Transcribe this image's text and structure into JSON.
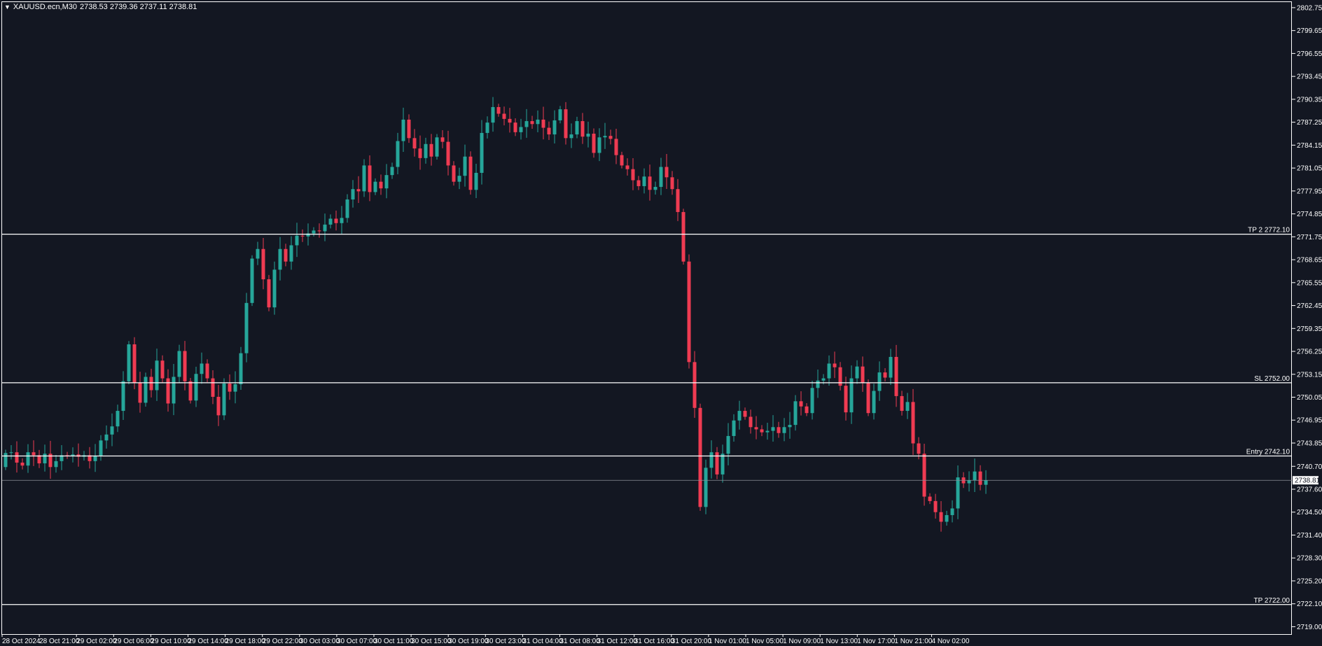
{
  "header": {
    "menu_icon": "triangle-down-icon",
    "symbol": "XAUUSD.ecn,M30",
    "ohlc": "2738.53 2739.36 2737.11 2738.81"
  },
  "colors": {
    "background": "#131722",
    "bull": "#26a69a",
    "bear": "#ef3b52",
    "lines": "#ffffff"
  },
  "chart_data": {
    "type": "candlestick",
    "ylim": [
      2718.0,
      2803.5
    ],
    "y_ticks": [
      "2802.75",
      "2799.65",
      "2796.55",
      "2793.45",
      "2790.35",
      "2787.25",
      "2784.15",
      "2781.05",
      "2777.95",
      "2774.85",
      "2771.75",
      "2768.65",
      "2765.55",
      "2762.45",
      "2759.35",
      "2756.25",
      "2753.15",
      "2750.05",
      "2746.95",
      "2743.85",
      "2740.70",
      "2737.60",
      "2734.50",
      "2731.40",
      "2728.30",
      "2725.20",
      "2722.10",
      "2719.00"
    ],
    "x_labels": [
      "28 Oct 2024",
      "28 Oct 21:00",
      "29 Oct 02:00",
      "29 Oct 06:00",
      "29 Oct 10:00",
      "29 Oct 14:00",
      "29 Oct 18:00",
      "29 Oct 22:00",
      "30 Oct 03:00",
      "30 Oct 07:00",
      "30 Oct 11:00",
      "30 Oct 15:00",
      "30 Oct 19:00",
      "30 Oct 23:00",
      "31 Oct 04:00",
      "31 Oct 08:00",
      "31 Oct 12:00",
      "31 Oct 16:00",
      "31 Oct 20:00",
      "1 Nov 01:00",
      "1 Nov 05:00",
      "1 Nov 09:00",
      "1 Nov 13:00",
      "1 Nov 17:00",
      "1 Nov 21:00",
      "4 Nov 02:00"
    ],
    "levels": [
      {
        "label": "TP 2 2772.10",
        "value": 2772.1
      },
      {
        "label": "SL 2752.00",
        "value": 2752.0
      },
      {
        "label": "Entry 2742.10",
        "value": 2742.1
      },
      {
        "label": "TP 2722.00",
        "value": 2722.0
      }
    ],
    "current_price": {
      "label": "2738.81",
      "value": 2738.81
    },
    "closes": [
      2742.5,
      2742.6,
      2741.2,
      2740.8,
      2742.6,
      2742.2,
      2741.1,
      2742.4,
      2740.6,
      2741.4,
      2742.2,
      2742.1,
      2742.3,
      2742.0,
      2742.2,
      2741.4,
      2742.1,
      2744.2,
      2745.0,
      2746.1,
      2748.2,
      2752.2,
      2757.2,
      2752.0,
      2749.3,
      2752.8,
      2751.0,
      2755.0,
      2752.6,
      2749.2,
      2752.8,
      2756.3,
      2752.2,
      2749.6,
      2753.2,
      2754.6,
      2752.6,
      2750.1,
      2747.6,
      2751.9,
      2750.8,
      2751.8,
      2756.0,
      2762.8,
      2768.8,
      2770.1,
      2766.0,
      2762.2,
      2767.3,
      2770.1,
      2768.4,
      2770.6,
      2771.9,
      2771.8,
      2772.2,
      2772.6,
      2772.5,
      2773.4,
      2774.2,
      2773.6,
      2774.3,
      2776.8,
      2778.2,
      2777.9,
      2781.4,
      2777.8,
      2779.2,
      2778.3,
      2780.1,
      2781.2,
      2784.7,
      2787.6,
      2785.1,
      2783.7,
      2782.4,
      2784.3,
      2782.6,
      2785.2,
      2784.6,
      2781.4,
      2779.2,
      2780.0,
      2782.6,
      2778.1,
      2780.4,
      2785.8,
      2787.2,
      2789.3,
      2788.4,
      2787.7,
      2787.2,
      2785.9,
      2786.6,
      2787.4,
      2787.0,
      2787.6,
      2786.5,
      2785.6,
      2787.5,
      2789.0,
      2785.1,
      2785.6,
      2787.4,
      2785.3,
      2785.7,
      2783.1,
      2785.2,
      2785.4,
      2785.0,
      2782.8,
      2781.4,
      2780.9,
      2779.4,
      2778.6,
      2779.9,
      2778.1,
      2778.5,
      2781.2,
      2779.8,
      2778.2,
      2775.1,
      2768.4,
      2754.8,
      2748.6,
      2735.2,
      2740.5,
      2742.6,
      2739.6,
      2742.4,
      2744.8,
      2746.9,
      2748.2,
      2747.4,
      2746.0,
      2745.7,
      2745.3,
      2745.5,
      2746.0,
      2745.2,
      2746.0,
      2746.3,
      2749.5,
      2748.8,
      2747.9,
      2751.3,
      2752.3,
      2752.6,
      2754.6,
      2754.1,
      2751.6,
      2748.0,
      2752.6,
      2754.2,
      2752.0,
      2747.9,
      2750.9,
      2753.4,
      2752.7,
      2755.5,
      2750.2,
      2748.2,
      2749.4,
      2743.8,
      2742.4,
      2736.6,
      2736.0,
      2734.5,
      2733.2,
      2734.1,
      2735.0,
      2739.2,
      2738.4,
      2738.8,
      2740.0,
      2738.2,
      2738.81
    ]
  }
}
